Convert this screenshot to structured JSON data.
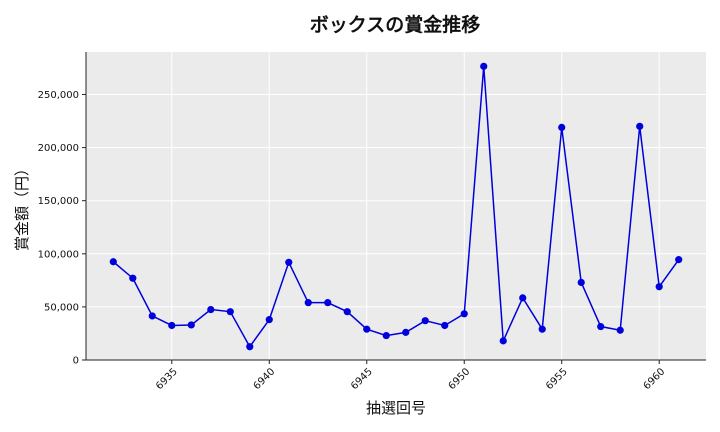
{
  "chart_data": {
    "type": "line",
    "title": "ボックスの賞金推移",
    "xlabel": "抽選回号",
    "ylabel": "賞金額（円）",
    "xlim": [
      6930.6,
      6962.4
    ],
    "ylim": [
      0,
      290000
    ],
    "x_ticks": [
      6935,
      6940,
      6945,
      6950,
      6955,
      6960
    ],
    "x_tick_labels": [
      "6935",
      "6940",
      "6945",
      "6950",
      "6955",
      "6960"
    ],
    "y_ticks": [
      0,
      50000,
      100000,
      150000,
      200000,
      250000
    ],
    "y_tick_labels": [
      "0",
      "50,000",
      "100,000",
      "150,000",
      "200,000",
      "250,000"
    ],
    "grid": true,
    "series": [
      {
        "color": "#0000dd",
        "x": [
          6932,
          6933,
          6934,
          6935,
          6936,
          6937,
          6938,
          6939,
          6940,
          6941,
          6942,
          6943,
          6944,
          6945,
          6946,
          6947,
          6948,
          6949,
          6950,
          6951,
          6952,
          6953,
          6954,
          6955,
          6956,
          6957,
          6958,
          6959,
          6960,
          6961
        ],
        "y": [
          92500,
          77000,
          41500,
          32500,
          33000,
          47500,
          45500,
          12500,
          38000,
          92000,
          54000,
          54000,
          45500,
          29000,
          23000,
          26000,
          37000,
          32500,
          43500,
          276500,
          18000,
          58500,
          29000,
          219000,
          73000,
          31500,
          28000,
          220000,
          69000,
          94500
        ]
      }
    ]
  }
}
